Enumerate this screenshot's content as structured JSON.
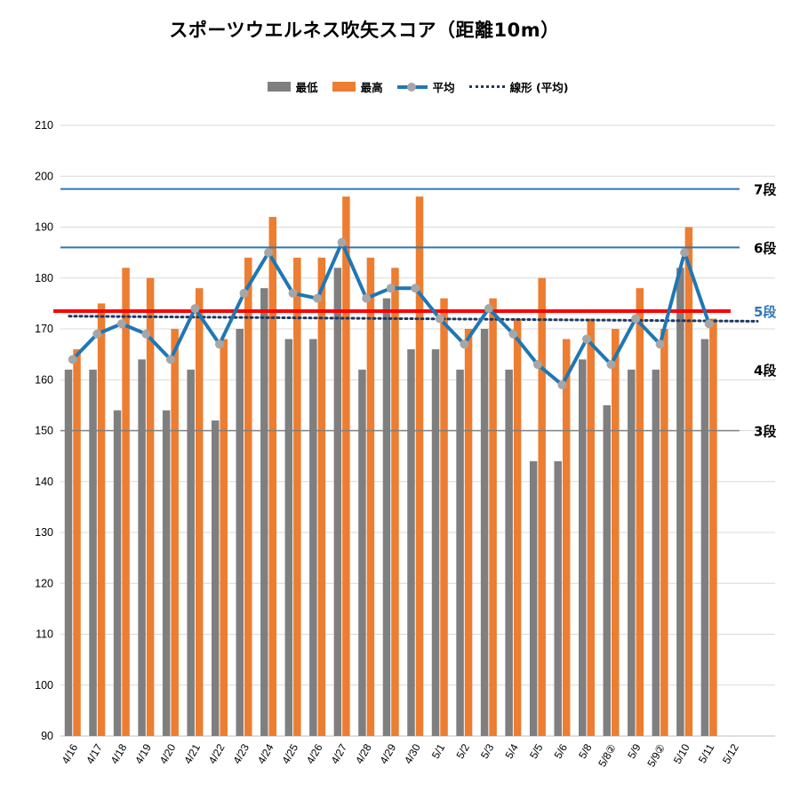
{
  "title": "スポーツウエルネス吹矢スコア（距離10m）",
  "colors": {
    "min": "#7f7f7f",
    "max": "#ed7d31",
    "avg": "#1f77b4",
    "avg_marker": "#a6a6a6",
    "trend": "#1f3864",
    "rank_line": "#2e75b6",
    "rank3_line": "#7f7f7f",
    "rank5_line": "#ff0000",
    "rank5_text": "#2e75b6",
    "grid": "#d9d9d9"
  },
  "legend": [
    {
      "label": "最低",
      "kind": "box",
      "color_key": "min"
    },
    {
      "label": "最高",
      "kind": "box",
      "color_key": "max"
    },
    {
      "label": "平均",
      "kind": "line-marker",
      "color_key": "avg"
    },
    {
      "label": "線形 (平均)",
      "kind": "dotted",
      "color_key": "trend"
    }
  ],
  "chart_data": {
    "type": "bar",
    "ylim": [
      90,
      210
    ],
    "yticks": [
      90,
      100,
      110,
      120,
      130,
      140,
      150,
      160,
      170,
      180,
      190,
      200,
      210
    ],
    "grid": true,
    "legend_position": "top",
    "categories": [
      "4/16",
      "4/17",
      "4/18",
      "4/19",
      "4/20",
      "4/21",
      "4/22",
      "4/23",
      "4/24",
      "4/25",
      "4/26",
      "4/27",
      "4/28",
      "4/29",
      "4/30",
      "5/1",
      "5/2",
      "5/3",
      "5/4",
      "5/5",
      "5/6",
      "5/8",
      "5/8②",
      "5/9",
      "5/9②",
      "5/10",
      "5/11",
      "5/12"
    ],
    "series": [
      {
        "name": "最低",
        "type": "bar",
        "color_key": "min",
        "values": [
          162,
          162,
          154,
          164,
          154,
          162,
          152,
          170,
          178,
          168,
          168,
          182,
          162,
          176,
          166,
          166,
          162,
          170,
          162,
          144,
          144,
          164,
          155,
          162,
          162,
          182,
          168,
          null
        ]
      },
      {
        "name": "最高",
        "type": "bar",
        "color_key": "max",
        "values": [
          166,
          175,
          182,
          180,
          170,
          178,
          168,
          184,
          192,
          184,
          184,
          196,
          184,
          182,
          196,
          176,
          170,
          176,
          172,
          180,
          168,
          172,
          170,
          178,
          170,
          190,
          172,
          null
        ]
      },
      {
        "name": "平均",
        "type": "line",
        "color_key": "avg",
        "values": [
          164,
          169,
          171,
          169,
          164,
          174,
          167,
          177,
          185,
          177,
          176,
          187,
          176,
          178,
          178,
          172,
          167,
          174,
          169,
          163,
          159,
          168,
          163,
          172,
          167,
          185,
          171,
          null
        ]
      }
    ],
    "trendline": {
      "name": "線形 (平均)",
      "from": 172.5,
      "to": 171.5
    },
    "reference_lines": [
      {
        "label": "7段",
        "value": 197.5,
        "color_key": "rank_line",
        "text_color_key": null,
        "width": 2
      },
      {
        "label": "6段",
        "value": 186,
        "color_key": "rank_line",
        "text_color_key": null,
        "width": 2
      },
      {
        "label": "5段",
        "value": 173.5,
        "color_key": "rank5_line",
        "text_color_key": "rank5_text",
        "width": 4
      },
      {
        "label": "4段",
        "value": 162,
        "color_key": null,
        "text_color_key": null,
        "width": 0
      },
      {
        "label": "3段",
        "value": 150,
        "color_key": "rank3_line",
        "text_color_key": null,
        "width": 1.5
      }
    ]
  }
}
